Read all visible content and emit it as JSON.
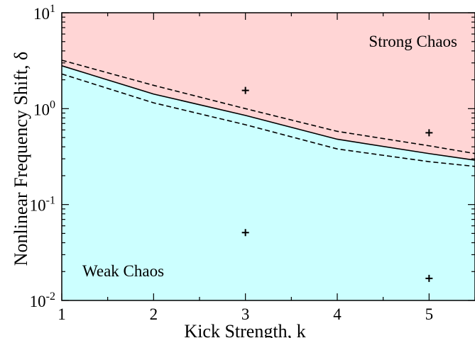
{
  "chart_data": {
    "type": "area",
    "xlabel": "Kick Strength, k",
    "ylabel": "Nonlinear Frequency Shift, δ",
    "x_scale": "linear",
    "y_scale": "log",
    "xlim": [
      1,
      5.5
    ],
    "ylim": [
      0.01,
      10
    ],
    "x_ticks": [
      1,
      2,
      3,
      4,
      5
    ],
    "y_ticks": [
      {
        "value": 0.01,
        "base": "10",
        "exp": "-2"
      },
      {
        "value": 0.1,
        "base": "10",
        "exp": "-1"
      },
      {
        "value": 1,
        "base": "10",
        "exp": "0"
      },
      {
        "value": 10,
        "base": "10",
        "exp": "1"
      }
    ],
    "boundary": {
      "style": "solid",
      "x": [
        1,
        2,
        3,
        4,
        5,
        5.5
      ],
      "y": [
        2.8,
        1.42,
        0.85,
        0.48,
        0.34,
        0.29
      ]
    },
    "upper_bound": {
      "style": "dashed",
      "x": [
        1,
        2,
        3,
        4,
        5,
        5.5
      ],
      "y": [
        3.2,
        1.75,
        1.0,
        0.58,
        0.41,
        0.34
      ]
    },
    "lower_bound": {
      "style": "dashed",
      "x": [
        1,
        2,
        3,
        4,
        5,
        5.5
      ],
      "y": [
        2.3,
        1.15,
        0.68,
        0.38,
        0.28,
        0.25
      ]
    },
    "points": [
      {
        "x": 3,
        "y": 1.55
      },
      {
        "x": 3,
        "y": 0.051
      },
      {
        "x": 5,
        "y": 0.56
      },
      {
        "x": 5,
        "y": 0.017
      }
    ],
    "regions": {
      "upper": {
        "label": "Strong Chaos",
        "color": "#ffd5d5"
      },
      "lower": {
        "label": "Weak Chaos",
        "color": "#ccffff"
      }
    },
    "grid": false,
    "legend": "none"
  }
}
